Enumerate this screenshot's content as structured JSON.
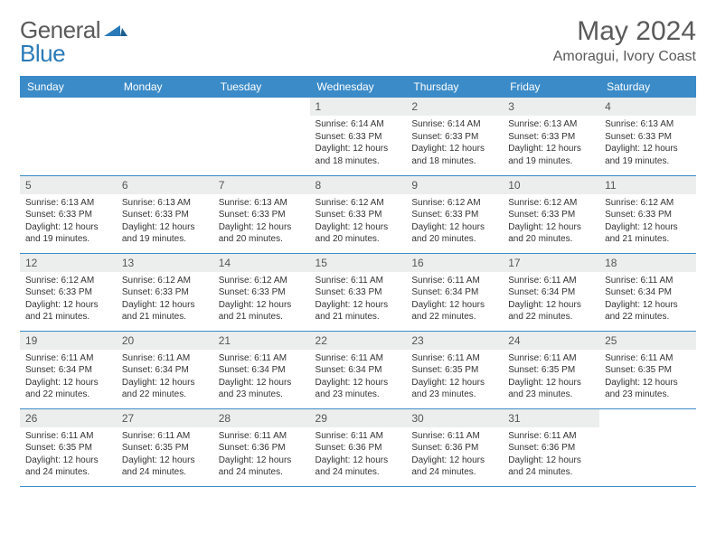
{
  "logo": {
    "text1": "General",
    "text2": "Blue"
  },
  "title": "May 2024",
  "location": "Amoragui, Ivory Coast",
  "colors": {
    "header_bg": "#3b8bc8",
    "header_text": "#ffffff",
    "daynum_bg": "#eceded",
    "border": "#3b8bc8",
    "logo_gray": "#5a5a5a",
    "logo_blue": "#2a7ab9"
  },
  "weekdays": [
    "Sunday",
    "Monday",
    "Tuesday",
    "Wednesday",
    "Thursday",
    "Friday",
    "Saturday"
  ],
  "weeks": [
    [
      null,
      null,
      null,
      {
        "num": "1",
        "sunrise": "Sunrise: 6:14 AM",
        "sunset": "Sunset: 6:33 PM",
        "daylight": "Daylight: 12 hours and 18 minutes."
      },
      {
        "num": "2",
        "sunrise": "Sunrise: 6:14 AM",
        "sunset": "Sunset: 6:33 PM",
        "daylight": "Daylight: 12 hours and 18 minutes."
      },
      {
        "num": "3",
        "sunrise": "Sunrise: 6:13 AM",
        "sunset": "Sunset: 6:33 PM",
        "daylight": "Daylight: 12 hours and 19 minutes."
      },
      {
        "num": "4",
        "sunrise": "Sunrise: 6:13 AM",
        "sunset": "Sunset: 6:33 PM",
        "daylight": "Daylight: 12 hours and 19 minutes."
      }
    ],
    [
      {
        "num": "5",
        "sunrise": "Sunrise: 6:13 AM",
        "sunset": "Sunset: 6:33 PM",
        "daylight": "Daylight: 12 hours and 19 minutes."
      },
      {
        "num": "6",
        "sunrise": "Sunrise: 6:13 AM",
        "sunset": "Sunset: 6:33 PM",
        "daylight": "Daylight: 12 hours and 19 minutes."
      },
      {
        "num": "7",
        "sunrise": "Sunrise: 6:13 AM",
        "sunset": "Sunset: 6:33 PM",
        "daylight": "Daylight: 12 hours and 20 minutes."
      },
      {
        "num": "8",
        "sunrise": "Sunrise: 6:12 AM",
        "sunset": "Sunset: 6:33 PM",
        "daylight": "Daylight: 12 hours and 20 minutes."
      },
      {
        "num": "9",
        "sunrise": "Sunrise: 6:12 AM",
        "sunset": "Sunset: 6:33 PM",
        "daylight": "Daylight: 12 hours and 20 minutes."
      },
      {
        "num": "10",
        "sunrise": "Sunrise: 6:12 AM",
        "sunset": "Sunset: 6:33 PM",
        "daylight": "Daylight: 12 hours and 20 minutes."
      },
      {
        "num": "11",
        "sunrise": "Sunrise: 6:12 AM",
        "sunset": "Sunset: 6:33 PM",
        "daylight": "Daylight: 12 hours and 21 minutes."
      }
    ],
    [
      {
        "num": "12",
        "sunrise": "Sunrise: 6:12 AM",
        "sunset": "Sunset: 6:33 PM",
        "daylight": "Daylight: 12 hours and 21 minutes."
      },
      {
        "num": "13",
        "sunrise": "Sunrise: 6:12 AM",
        "sunset": "Sunset: 6:33 PM",
        "daylight": "Daylight: 12 hours and 21 minutes."
      },
      {
        "num": "14",
        "sunrise": "Sunrise: 6:12 AM",
        "sunset": "Sunset: 6:33 PM",
        "daylight": "Daylight: 12 hours and 21 minutes."
      },
      {
        "num": "15",
        "sunrise": "Sunrise: 6:11 AM",
        "sunset": "Sunset: 6:33 PM",
        "daylight": "Daylight: 12 hours and 21 minutes."
      },
      {
        "num": "16",
        "sunrise": "Sunrise: 6:11 AM",
        "sunset": "Sunset: 6:34 PM",
        "daylight": "Daylight: 12 hours and 22 minutes."
      },
      {
        "num": "17",
        "sunrise": "Sunrise: 6:11 AM",
        "sunset": "Sunset: 6:34 PM",
        "daylight": "Daylight: 12 hours and 22 minutes."
      },
      {
        "num": "18",
        "sunrise": "Sunrise: 6:11 AM",
        "sunset": "Sunset: 6:34 PM",
        "daylight": "Daylight: 12 hours and 22 minutes."
      }
    ],
    [
      {
        "num": "19",
        "sunrise": "Sunrise: 6:11 AM",
        "sunset": "Sunset: 6:34 PM",
        "daylight": "Daylight: 12 hours and 22 minutes."
      },
      {
        "num": "20",
        "sunrise": "Sunrise: 6:11 AM",
        "sunset": "Sunset: 6:34 PM",
        "daylight": "Daylight: 12 hours and 22 minutes."
      },
      {
        "num": "21",
        "sunrise": "Sunrise: 6:11 AM",
        "sunset": "Sunset: 6:34 PM",
        "daylight": "Daylight: 12 hours and 23 minutes."
      },
      {
        "num": "22",
        "sunrise": "Sunrise: 6:11 AM",
        "sunset": "Sunset: 6:34 PM",
        "daylight": "Daylight: 12 hours and 23 minutes."
      },
      {
        "num": "23",
        "sunrise": "Sunrise: 6:11 AM",
        "sunset": "Sunset: 6:35 PM",
        "daylight": "Daylight: 12 hours and 23 minutes."
      },
      {
        "num": "24",
        "sunrise": "Sunrise: 6:11 AM",
        "sunset": "Sunset: 6:35 PM",
        "daylight": "Daylight: 12 hours and 23 minutes."
      },
      {
        "num": "25",
        "sunrise": "Sunrise: 6:11 AM",
        "sunset": "Sunset: 6:35 PM",
        "daylight": "Daylight: 12 hours and 23 minutes."
      }
    ],
    [
      {
        "num": "26",
        "sunrise": "Sunrise: 6:11 AM",
        "sunset": "Sunset: 6:35 PM",
        "daylight": "Daylight: 12 hours and 24 minutes."
      },
      {
        "num": "27",
        "sunrise": "Sunrise: 6:11 AM",
        "sunset": "Sunset: 6:35 PM",
        "daylight": "Daylight: 12 hours and 24 minutes."
      },
      {
        "num": "28",
        "sunrise": "Sunrise: 6:11 AM",
        "sunset": "Sunset: 6:36 PM",
        "daylight": "Daylight: 12 hours and 24 minutes."
      },
      {
        "num": "29",
        "sunrise": "Sunrise: 6:11 AM",
        "sunset": "Sunset: 6:36 PM",
        "daylight": "Daylight: 12 hours and 24 minutes."
      },
      {
        "num": "30",
        "sunrise": "Sunrise: 6:11 AM",
        "sunset": "Sunset: 6:36 PM",
        "daylight": "Daylight: 12 hours and 24 minutes."
      },
      {
        "num": "31",
        "sunrise": "Sunrise: 6:11 AM",
        "sunset": "Sunset: 6:36 PM",
        "daylight": "Daylight: 12 hours and 24 minutes."
      },
      null
    ]
  ]
}
